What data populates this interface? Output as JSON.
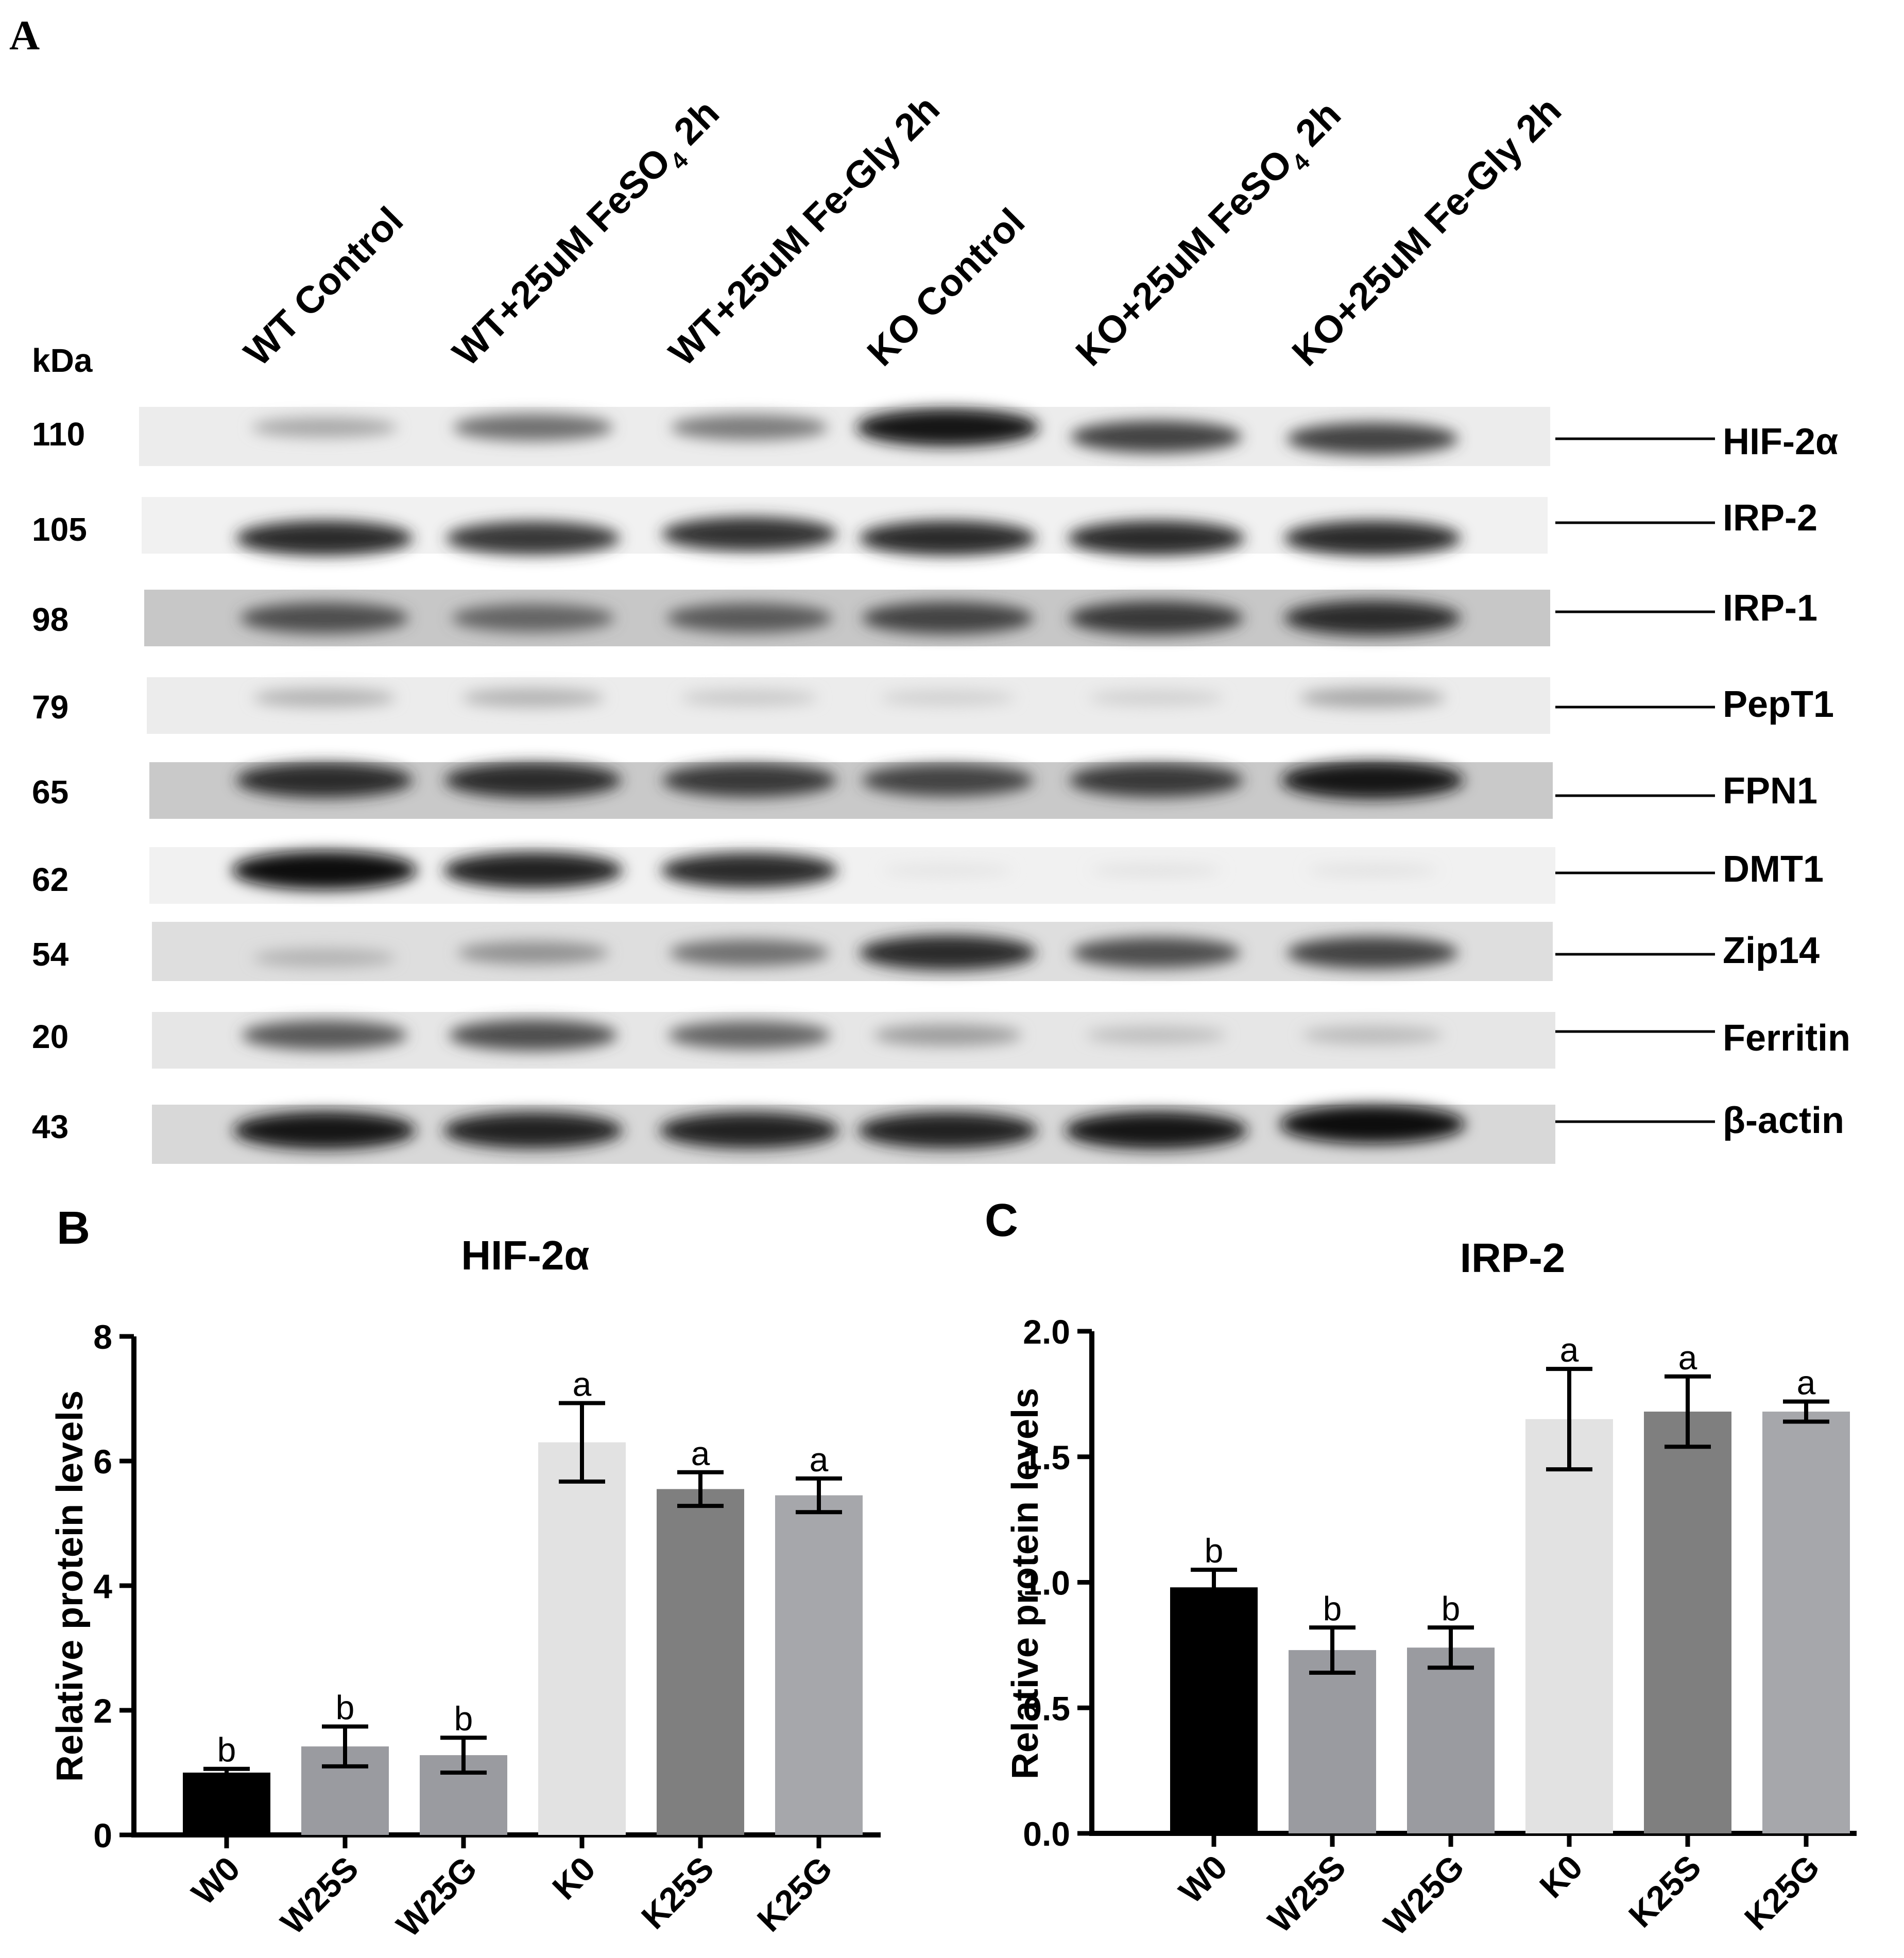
{
  "panel_a": {
    "letter": "A",
    "kda_label": "kDa",
    "lanes": [
      {
        "label": "WT Control"
      },
      {
        "label": "WT+25uM FeSO",
        "sub": "4",
        "suffix": " 2h"
      },
      {
        "label": "WT+25uM Fe-Gly 2h"
      },
      {
        "label": "KO Control"
      },
      {
        "label": "KO+25uM FeSO",
        "sub": "4",
        "suffix": " 2h"
      },
      {
        "label": "KO+25uM Fe-Gly 2h"
      }
    ],
    "blots": [
      {
        "protein": "HIF-2α",
        "kda": "110",
        "intensity": [
          0.3,
          0.55,
          0.5,
          0.95,
          0.75,
          0.75
        ]
      },
      {
        "protein": "IRP-2",
        "kda": "105",
        "intensity": [
          0.85,
          0.8,
          0.82,
          0.85,
          0.85,
          0.85
        ]
      },
      {
        "protein": "IRP-1",
        "kda": "98",
        "intensity": [
          0.7,
          0.6,
          0.65,
          0.75,
          0.8,
          0.85
        ]
      },
      {
        "protein": "PepT1",
        "kda": "79",
        "intensity": [
          0.25,
          0.25,
          0.15,
          0.12,
          0.12,
          0.3
        ]
      },
      {
        "protein": "FPN1",
        "kda": "65",
        "intensity": [
          0.85,
          0.85,
          0.8,
          0.75,
          0.8,
          0.95
        ]
      },
      {
        "protein": "DMT1",
        "kda": "62",
        "intensity": [
          1.0,
          0.9,
          0.85,
          0.03,
          0.04,
          0.04
        ]
      },
      {
        "protein": "Zip14",
        "kda": "54",
        "intensity": [
          0.25,
          0.4,
          0.55,
          0.85,
          0.7,
          0.75
        ]
      },
      {
        "protein": "Ferritin",
        "kda": "20",
        "intensity": [
          0.65,
          0.7,
          0.6,
          0.35,
          0.2,
          0.22
        ]
      },
      {
        "protein": "β-actin",
        "kda": "43",
        "intensity": [
          0.95,
          0.9,
          0.9,
          0.9,
          0.95,
          1.0
        ]
      }
    ]
  },
  "chart_data": [
    {
      "panel": "B",
      "type": "bar",
      "title": "HIF-2α",
      "ylabel": "Relative protein levels",
      "xlabel": "",
      "categories": [
        "W0",
        "W25S",
        "W25G",
        "K0",
        "K25S",
        "K25G"
      ],
      "values": [
        1.0,
        1.42,
        1.28,
        6.3,
        5.55,
        5.45
      ],
      "errors": [
        0.06,
        0.32,
        0.28,
        0.63,
        0.27,
        0.27
      ],
      "letters": [
        "b",
        "b",
        "b",
        "a",
        "a",
        "a"
      ],
      "colors": [
        "#000000",
        "#9a9ba0",
        "#9a9ba0",
        "#e2e2e2",
        "#7f7f7f",
        "#a6a7ab"
      ],
      "ylim": [
        0,
        8
      ],
      "yticks": [
        "0",
        "2",
        "4",
        "6",
        "8"
      ]
    },
    {
      "panel": "C",
      "type": "bar",
      "title": "IRP-2",
      "ylabel": "Relative protein levels",
      "xlabel": "",
      "categories": [
        "W0",
        "W25S",
        "W25G",
        "K0",
        "K25S",
        "K25G"
      ],
      "values": [
        0.98,
        0.73,
        0.74,
        1.65,
        1.68,
        1.68
      ],
      "errors": [
        0.07,
        0.09,
        0.08,
        0.2,
        0.14,
        0.04
      ],
      "letters": [
        "b",
        "b",
        "b",
        "a",
        "a",
        "a"
      ],
      "colors": [
        "#000000",
        "#9a9ba0",
        "#9a9ba0",
        "#e2e2e2",
        "#7f7f7f",
        "#a6a7ab"
      ],
      "ylim": [
        0,
        2
      ],
      "yticks": [
        "0.0",
        "0.5",
        "1.0",
        "1.5",
        "2.0"
      ]
    }
  ]
}
